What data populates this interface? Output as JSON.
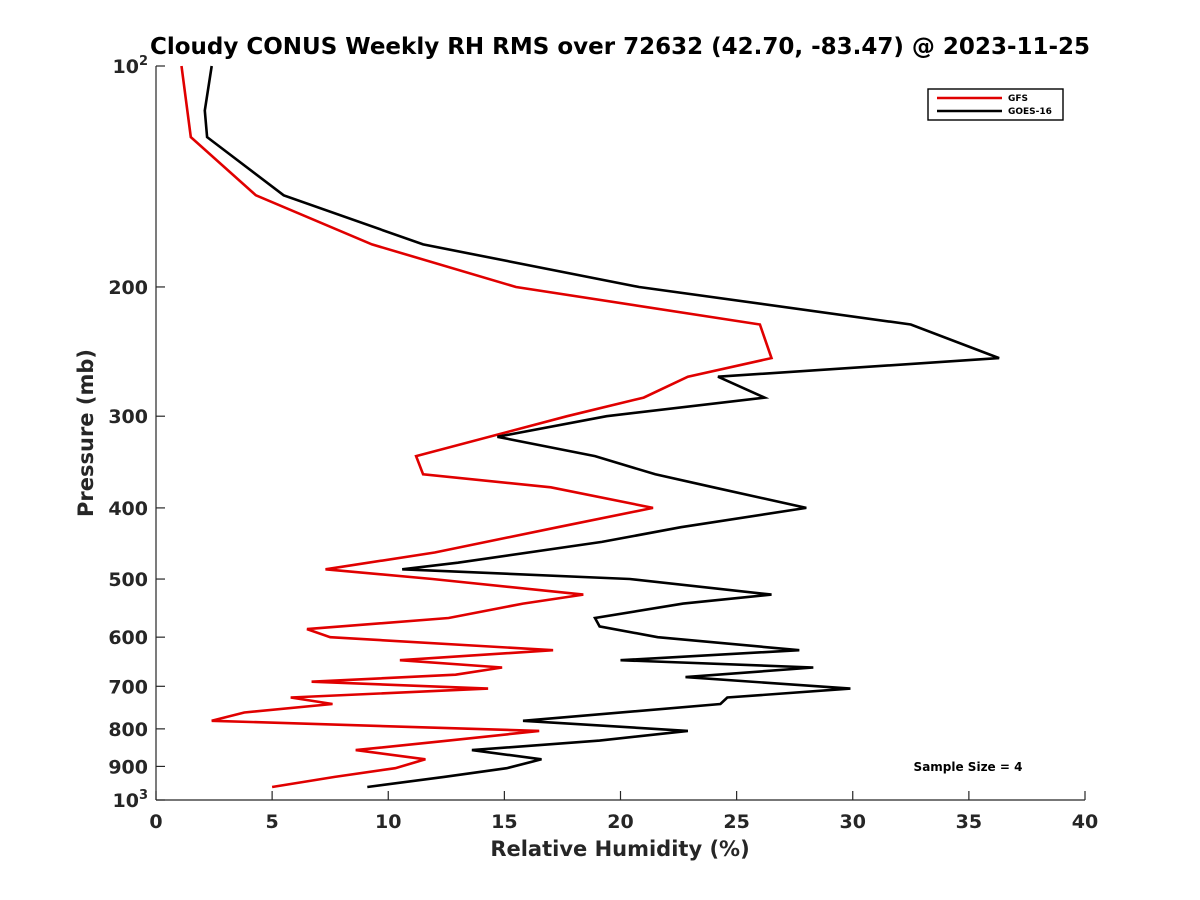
{
  "chart_data": {
    "type": "line",
    "title": "Cloudy CONUS Weekly RH RMS over 72632 (42.70, -83.47) @ 2023-11-25",
    "xlabel": "Relative Humidity (%)",
    "ylabel": "Pressure (mb)",
    "xlim": [
      0,
      40
    ],
    "ylim": [
      1000,
      100
    ],
    "yscale": "log",
    "y_reversed": true,
    "x_ticks": [
      "0",
      "5",
      "10",
      "15",
      "20",
      "25",
      "30",
      "35",
      "40"
    ],
    "y_ticks": [
      {
        "value": 100,
        "base": "10",
        "exp": "2"
      },
      {
        "value": 200,
        "label": "200"
      },
      {
        "value": 300,
        "label": "300"
      },
      {
        "value": 400,
        "label": "400"
      },
      {
        "value": 500,
        "label": "500"
      },
      {
        "value": 600,
        "label": "600"
      },
      {
        "value": 700,
        "label": "700"
      },
      {
        "value": 800,
        "label": "800"
      },
      {
        "value": 900,
        "label": "900"
      },
      {
        "value": 1000,
        "base": "10",
        "exp": "3"
      }
    ],
    "grid": false,
    "legend_position": "top-right",
    "annotation": "Sample Size = 4",
    "series": [
      {
        "name": "GFS",
        "color": "#e00000",
        "points": [
          [
            1.1,
            100
          ],
          [
            1.5,
            125
          ],
          [
            4.3,
            150
          ],
          [
            9.3,
            175
          ],
          [
            15.5,
            200
          ],
          [
            26.0,
            225
          ],
          [
            26.5,
            250
          ],
          [
            22.9,
            265
          ],
          [
            21.0,
            283
          ],
          [
            17.7,
            300
          ],
          [
            11.2,
            340
          ],
          [
            11.5,
            360
          ],
          [
            17.0,
            375
          ],
          [
            21.4,
            400
          ],
          [
            17.3,
            425
          ],
          [
            12.0,
            460
          ],
          [
            7.3,
            485
          ],
          [
            11.9,
            500
          ],
          [
            18.4,
            525
          ],
          [
            15.8,
            540
          ],
          [
            12.6,
            565
          ],
          [
            6.5,
            585
          ],
          [
            7.5,
            600
          ],
          [
            17.1,
            625
          ],
          [
            10.5,
            645
          ],
          [
            14.9,
            660
          ],
          [
            12.9,
            675
          ],
          [
            6.7,
            690
          ],
          [
            14.3,
            705
          ],
          [
            5.8,
            725
          ],
          [
            7.6,
            740
          ],
          [
            3.8,
            760
          ],
          [
            2.4,
            780
          ],
          [
            16.5,
            805
          ],
          [
            12.6,
            830
          ],
          [
            8.6,
            855
          ],
          [
            11.6,
            880
          ],
          [
            10.3,
            905
          ],
          [
            7.7,
            930
          ],
          [
            5.0,
            960
          ]
        ]
      },
      {
        "name": "GOES-16",
        "color": "#000000",
        "points": [
          [
            2.4,
            100
          ],
          [
            2.1,
            115
          ],
          [
            2.2,
            125
          ],
          [
            5.5,
            150
          ],
          [
            11.5,
            175
          ],
          [
            20.8,
            200
          ],
          [
            32.5,
            225
          ],
          [
            36.3,
            250
          ],
          [
            24.2,
            265
          ],
          [
            26.2,
            283
          ],
          [
            19.4,
            300
          ],
          [
            14.7,
            320
          ],
          [
            18.9,
            340
          ],
          [
            21.5,
            360
          ],
          [
            24.0,
            375
          ],
          [
            28.0,
            400
          ],
          [
            22.6,
            425
          ],
          [
            19.2,
            445
          ],
          [
            13.0,
            475
          ],
          [
            10.6,
            485
          ],
          [
            20.4,
            500
          ],
          [
            26.5,
            525
          ],
          [
            22.7,
            540
          ],
          [
            18.9,
            565
          ],
          [
            19.1,
            580
          ],
          [
            21.6,
            600
          ],
          [
            27.7,
            625
          ],
          [
            20.0,
            645
          ],
          [
            28.3,
            660
          ],
          [
            22.8,
            680
          ],
          [
            29.9,
            705
          ],
          [
            24.6,
            725
          ],
          [
            24.3,
            740
          ],
          [
            15.8,
            780
          ],
          [
            22.9,
            805
          ],
          [
            19.1,
            830
          ],
          [
            13.6,
            855
          ],
          [
            16.6,
            880
          ],
          [
            15.1,
            905
          ],
          [
            12.4,
            930
          ],
          [
            9.1,
            960
          ]
        ]
      }
    ]
  }
}
